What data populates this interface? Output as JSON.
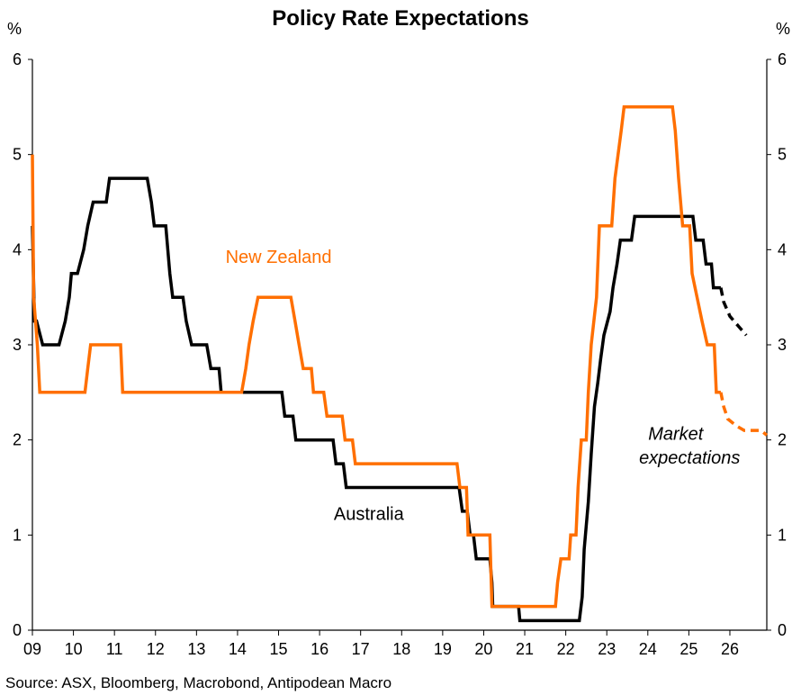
{
  "chart_data": {
    "type": "line",
    "title": "Policy Rate Expectations",
    "ylabel_left": "%",
    "ylabel_right": "%",
    "ylim": [
      0,
      6
    ],
    "yticks": [
      "0",
      "1",
      "2",
      "3",
      "4",
      "5",
      "6"
    ],
    "xlim": [
      2009,
      2026.9
    ],
    "xticks": [
      {
        "label": "09",
        "x": 2009
      },
      {
        "label": "10",
        "x": 2010
      },
      {
        "label": "11",
        "x": 2011
      },
      {
        "label": "12",
        "x": 2012
      },
      {
        "label": "13",
        "x": 2013
      },
      {
        "label": "14",
        "x": 2014
      },
      {
        "label": "15",
        "x": 2015
      },
      {
        "label": "16",
        "x": 2016
      },
      {
        "label": "17",
        "x": 2017
      },
      {
        "label": "18",
        "x": 2018
      },
      {
        "label": "19",
        "x": 2019
      },
      {
        "label": "20",
        "x": 2020
      },
      {
        "label": "21",
        "x": 2021
      },
      {
        "label": "22",
        "x": 2022
      },
      {
        "label": "23",
        "x": 2023
      },
      {
        "label": "24",
        "x": 2024
      },
      {
        "label": "25",
        "x": 2025
      },
      {
        "label": "26",
        "x": 2026
      }
    ],
    "series": [
      {
        "name": "Australia",
        "color": "#000000",
        "actual": [
          [
            2009.0,
            4.25
          ],
          [
            2009.05,
            3.25
          ],
          [
            2009.1,
            3.25
          ],
          [
            2009.25,
            3.0
          ],
          [
            2009.65,
            3.0
          ],
          [
            2009.8,
            3.25
          ],
          [
            2009.9,
            3.5
          ],
          [
            2009.95,
            3.75
          ],
          [
            2010.1,
            3.75
          ],
          [
            2010.25,
            4.0
          ],
          [
            2010.35,
            4.25
          ],
          [
            2010.48,
            4.5
          ],
          [
            2010.8,
            4.5
          ],
          [
            2010.88,
            4.75
          ],
          [
            2011.8,
            4.75
          ],
          [
            2011.9,
            4.5
          ],
          [
            2011.97,
            4.25
          ],
          [
            2012.25,
            4.25
          ],
          [
            2012.35,
            3.75
          ],
          [
            2012.42,
            3.5
          ],
          [
            2012.67,
            3.5
          ],
          [
            2012.75,
            3.25
          ],
          [
            2012.88,
            3.0
          ],
          [
            2013.25,
            3.0
          ],
          [
            2013.35,
            2.75
          ],
          [
            2013.55,
            2.75
          ],
          [
            2013.6,
            2.5
          ],
          [
            2015.08,
            2.5
          ],
          [
            2015.15,
            2.25
          ],
          [
            2015.35,
            2.25
          ],
          [
            2015.42,
            2.0
          ],
          [
            2016.33,
            2.0
          ],
          [
            2016.4,
            1.75
          ],
          [
            2016.58,
            1.75
          ],
          [
            2016.65,
            1.5
          ],
          [
            2019.4,
            1.5
          ],
          [
            2019.48,
            1.25
          ],
          [
            2019.6,
            1.25
          ],
          [
            2019.67,
            1.0
          ],
          [
            2019.75,
            1.0
          ],
          [
            2019.82,
            0.75
          ],
          [
            2020.15,
            0.75
          ],
          [
            2020.2,
            0.5
          ],
          [
            2020.22,
            0.25
          ],
          [
            2020.85,
            0.25
          ],
          [
            2020.88,
            0.1
          ],
          [
            2022.33,
            0.1
          ],
          [
            2022.4,
            0.35
          ],
          [
            2022.45,
            0.85
          ],
          [
            2022.55,
            1.35
          ],
          [
            2022.62,
            1.85
          ],
          [
            2022.7,
            2.35
          ],
          [
            2022.78,
            2.6
          ],
          [
            2022.85,
            2.85
          ],
          [
            2022.93,
            3.1
          ],
          [
            2023.08,
            3.35
          ],
          [
            2023.15,
            3.6
          ],
          [
            2023.25,
            3.85
          ],
          [
            2023.33,
            4.1
          ],
          [
            2023.6,
            4.1
          ],
          [
            2023.68,
            4.35
          ],
          [
            2025.1,
            4.35
          ],
          [
            2025.17,
            4.1
          ],
          [
            2025.35,
            4.1
          ],
          [
            2025.42,
            3.85
          ],
          [
            2025.55,
            3.85
          ],
          [
            2025.6,
            3.6
          ],
          [
            2025.78,
            3.6
          ]
        ],
        "expected": [
          [
            2025.78,
            3.6
          ],
          [
            2025.85,
            3.45
          ],
          [
            2026.0,
            3.3
          ],
          [
            2026.2,
            3.2
          ],
          [
            2026.4,
            3.1
          ]
        ]
      },
      {
        "name": "New Zealand",
        "color": "#FF6F00",
        "actual": [
          [
            2009.0,
            5.0
          ],
          [
            2009.03,
            3.5
          ],
          [
            2009.12,
            3.0
          ],
          [
            2009.18,
            2.5
          ],
          [
            2010.28,
            2.5
          ],
          [
            2010.35,
            2.75
          ],
          [
            2010.42,
            3.0
          ],
          [
            2011.15,
            3.0
          ],
          [
            2011.2,
            2.5
          ],
          [
            2014.1,
            2.5
          ],
          [
            2014.2,
            2.75
          ],
          [
            2014.28,
            3.0
          ],
          [
            2014.38,
            3.25
          ],
          [
            2014.5,
            3.5
          ],
          [
            2015.3,
            3.5
          ],
          [
            2015.4,
            3.25
          ],
          [
            2015.5,
            3.0
          ],
          [
            2015.6,
            2.75
          ],
          [
            2015.8,
            2.75
          ],
          [
            2015.85,
            2.5
          ],
          [
            2016.1,
            2.5
          ],
          [
            2016.18,
            2.25
          ],
          [
            2016.55,
            2.25
          ],
          [
            2016.62,
            2.0
          ],
          [
            2016.8,
            2.0
          ],
          [
            2016.87,
            1.75
          ],
          [
            2019.35,
            1.75
          ],
          [
            2019.42,
            1.5
          ],
          [
            2019.58,
            1.5
          ],
          [
            2019.62,
            1.0
          ],
          [
            2020.15,
            1.0
          ],
          [
            2020.2,
            0.25
          ],
          [
            2021.75,
            0.25
          ],
          [
            2021.8,
            0.5
          ],
          [
            2021.88,
            0.75
          ],
          [
            2022.08,
            0.75
          ],
          [
            2022.12,
            1.0
          ],
          [
            2022.25,
            1.0
          ],
          [
            2022.3,
            1.5
          ],
          [
            2022.38,
            2.0
          ],
          [
            2022.5,
            2.0
          ],
          [
            2022.55,
            2.5
          ],
          [
            2022.62,
            3.0
          ],
          [
            2022.75,
            3.5
          ],
          [
            2022.82,
            4.25
          ],
          [
            2023.12,
            4.25
          ],
          [
            2023.2,
            4.75
          ],
          [
            2023.35,
            5.25
          ],
          [
            2023.42,
            5.5
          ],
          [
            2024.6,
            5.5
          ],
          [
            2024.67,
            5.25
          ],
          [
            2024.75,
            4.75
          ],
          [
            2024.85,
            4.25
          ],
          [
            2025.02,
            4.25
          ],
          [
            2025.08,
            3.75
          ],
          [
            2025.2,
            3.5
          ],
          [
            2025.32,
            3.25
          ],
          [
            2025.45,
            3.0
          ],
          [
            2025.62,
            3.0
          ],
          [
            2025.67,
            2.5
          ],
          [
            2025.78,
            2.5
          ]
        ],
        "expected": [
          [
            2025.78,
            2.5
          ],
          [
            2025.85,
            2.35
          ],
          [
            2025.95,
            2.22
          ],
          [
            2026.15,
            2.15
          ],
          [
            2026.35,
            2.1
          ],
          [
            2026.55,
            2.1
          ],
          [
            2026.75,
            2.1
          ],
          [
            2026.9,
            2.05
          ]
        ]
      }
    ],
    "annotations": [
      {
        "text": "New Zealand",
        "color": "#FF6F00",
        "anchor": "nz"
      },
      {
        "text": "Australia",
        "color": "#000000",
        "anchor": "au"
      },
      {
        "text": "Market",
        "color": "#000000",
        "style": "italic",
        "anchor": "mkt1"
      },
      {
        "text": "expectations",
        "color": "#000000",
        "style": "italic",
        "anchor": "mkt2"
      }
    ],
    "source": "Source: ASX,  Bloomberg, Macrobond, Antipodean Macro"
  }
}
